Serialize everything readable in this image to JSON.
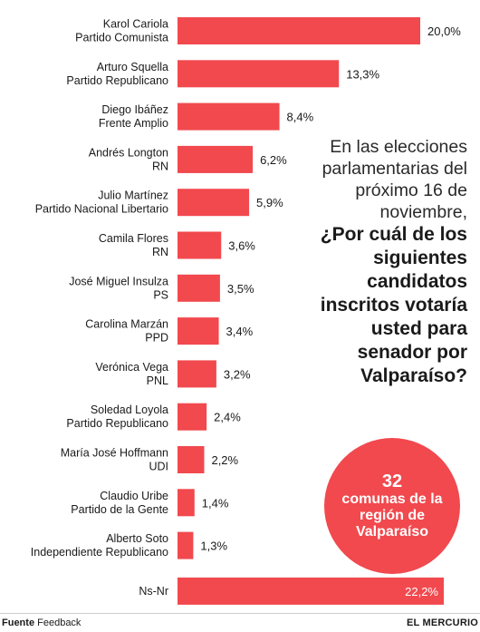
{
  "chart_data": {
    "type": "bar",
    "orientation": "horizontal",
    "categories": [
      [
        "Karol Cariola",
        "Partido Comunista"
      ],
      [
        "Arturo Squella",
        "Partido Republicano"
      ],
      [
        "Diego Ibáñez",
        "Frente Amplio"
      ],
      [
        "Andrés Longton",
        "RN"
      ],
      [
        "Julio Martínez",
        "Partido Nacional Libertario"
      ],
      [
        "Camila Flores",
        "RN"
      ],
      [
        "José Miguel Insulza",
        "PS"
      ],
      [
        "Carolina Marzán",
        "PPD"
      ],
      [
        "Verónica Vega",
        "PNL"
      ],
      [
        "Soledad Loyola",
        "Partido Republicano"
      ],
      [
        "María José Hoffmann",
        "UDI"
      ],
      [
        "Claudio Uribe",
        "Partido de la Gente"
      ],
      [
        "Alberto Soto",
        "Independiente Republicano"
      ],
      [
        "Ns-Nr"
      ]
    ],
    "values": [
      20.0,
      13.3,
      8.4,
      6.2,
      5.9,
      3.6,
      3.5,
      3.4,
      3.2,
      2.4,
      2.2,
      1.4,
      1.3,
      22.2
    ],
    "value_labels": [
      "20,0%",
      "13,3%",
      "8,4%",
      "6,2%",
      "5,9%",
      "3,6%",
      "3,5%",
      "3,4%",
      "3,2%",
      "2,4%",
      "2,2%",
      "1,4%",
      "1,3%",
      "22,2%"
    ],
    "bar_color": "#f1494e",
    "grid": false,
    "legend": "none"
  },
  "question": {
    "intro": "En las elecciones parlamentarias del próximo 16 de noviembre,",
    "main": "¿Por cuál de los siguientes candidatos inscritos votaría usted para senador por Valparaíso?"
  },
  "badge": {
    "number": "32",
    "text": "comunas de la región de Valparaíso",
    "color": "#f1494e"
  },
  "footer": {
    "source_label": "Fuente",
    "source_value": "Feedback",
    "brand": "EL MERCURIO"
  }
}
